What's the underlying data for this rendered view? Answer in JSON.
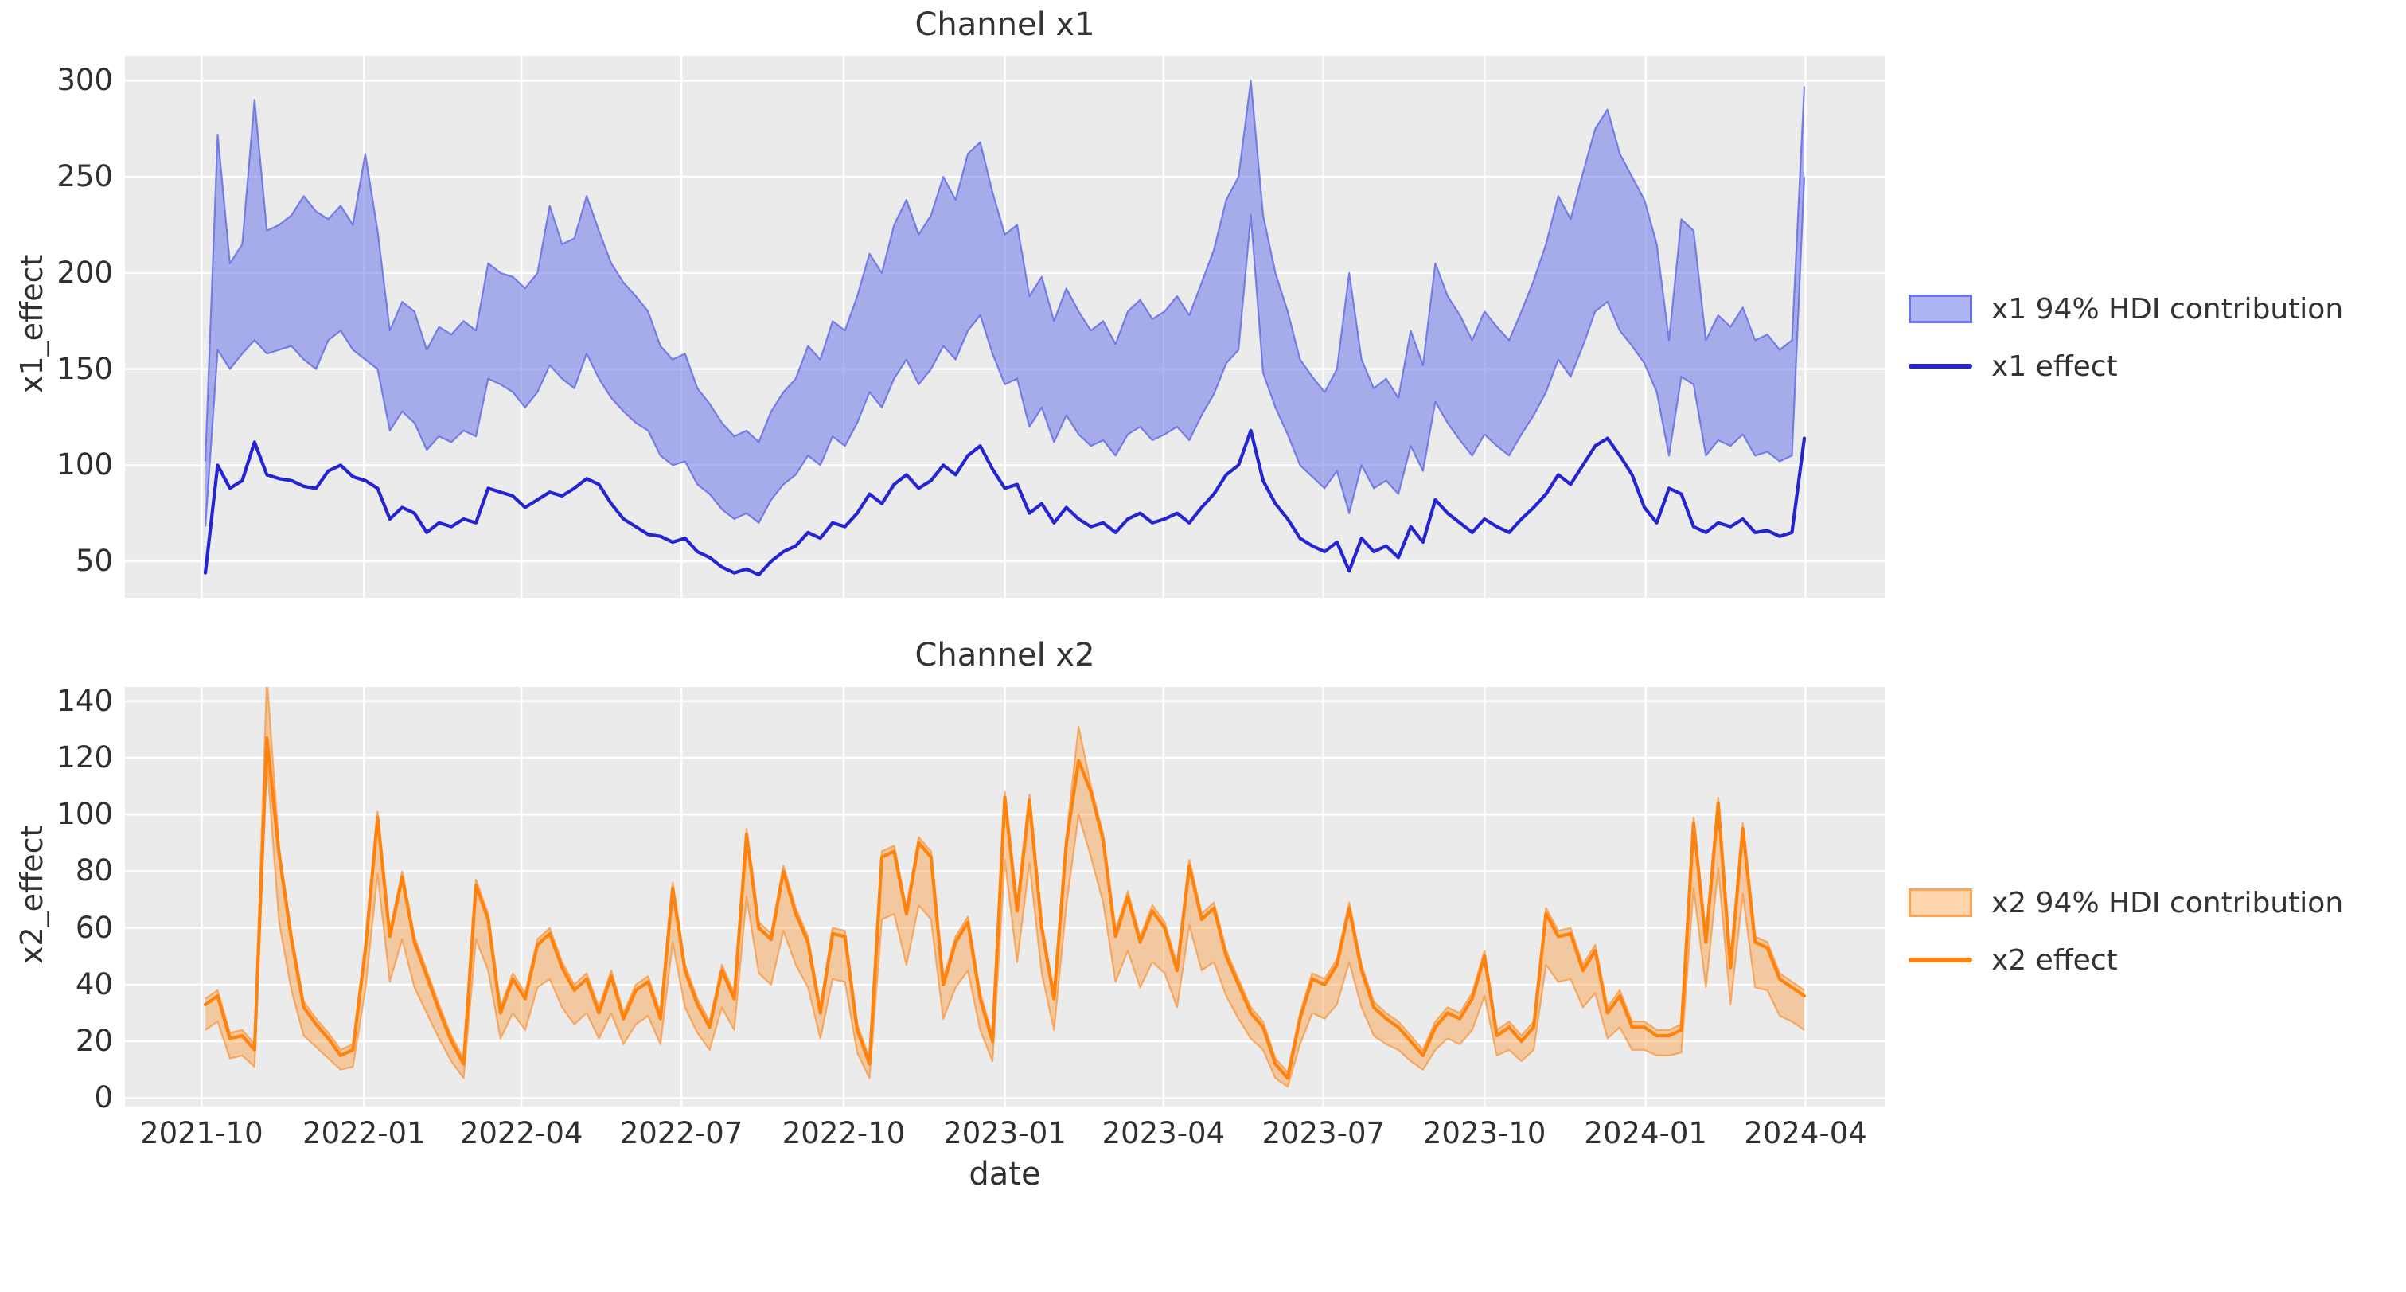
{
  "figure": {
    "background": "#ffffff",
    "plot_background": "#ebebeb",
    "gridline_color": "#ffffff"
  },
  "x_axis": {
    "label": "date",
    "ticks": [
      {
        "label": "2021-10",
        "week": -0.3
      },
      {
        "label": "2022-01",
        "week": 12.9
      },
      {
        "label": "2022-04",
        "week": 25.7
      },
      {
        "label": "2022-07",
        "week": 38.7
      },
      {
        "label": "2022-10",
        "week": 51.9
      },
      {
        "label": "2023-01",
        "week": 65.0
      },
      {
        "label": "2023-04",
        "week": 77.9
      },
      {
        "label": "2023-07",
        "week": 90.9
      },
      {
        "label": "2023-10",
        "week": 104.0
      },
      {
        "label": "2024-01",
        "week": 117.1
      },
      {
        "label": "2024-04",
        "week": 130.1
      }
    ]
  },
  "chart_data": [
    {
      "type": "area",
      "title": "Channel x1",
      "ylabel": "x1_effect",
      "xlabel": "",
      "legend": [
        "x1 94% HDI contribution",
        "x1 effect"
      ],
      "legend_position": "right-outside",
      "grid": true,
      "x_start": "2021-10-03",
      "x_step_days": 7,
      "n_points": 131,
      "ylim": [
        31,
        313
      ],
      "yticks": [
        50,
        100,
        150,
        200,
        250,
        300
      ],
      "line_color": "#2424d3",
      "band_fill": "rgba(110,118,232,0.55)",
      "band_edge": "rgba(96,105,228,0.8)",
      "effect": [
        44,
        100,
        88,
        92,
        112,
        95,
        93,
        92,
        89,
        88,
        97,
        100,
        94,
        92,
        88,
        72,
        78,
        75,
        65,
        70,
        68,
        72,
        70,
        88,
        86,
        84,
        78,
        82,
        86,
        84,
        88,
        93,
        90,
        80,
        72,
        68,
        64,
        63,
        60,
        62,
        55,
        52,
        47,
        44,
        46,
        43,
        50,
        55,
        58,
        65,
        62,
        70,
        68,
        75,
        85,
        80,
        90,
        95,
        88,
        92,
        100,
        95,
        105,
        110,
        98,
        88,
        90,
        75,
        80,
        70,
        78,
        72,
        68,
        70,
        65,
        72,
        75,
        70,
        72,
        75,
        70,
        78,
        85,
        95,
        100,
        118,
        92,
        80,
        72,
        62,
        58,
        55,
        60,
        45,
        62,
        55,
        58,
        52,
        68,
        60,
        82,
        75,
        70,
        65,
        72,
        68,
        65,
        72,
        78,
        85,
        95,
        90,
        100,
        110,
        114,
        105,
        95,
        78,
        70,
        88,
        85,
        68,
        65,
        70,
        68,
        72,
        65,
        66,
        63,
        65,
        114
      ],
      "hdi_lower": [
        68,
        160,
        150,
        158,
        165,
        158,
        160,
        162,
        155,
        150,
        165,
        170,
        160,
        155,
        150,
        118,
        128,
        122,
        108,
        115,
        112,
        118,
        115,
        145,
        142,
        138,
        130,
        138,
        152,
        145,
        140,
        158,
        145,
        135,
        128,
        122,
        118,
        105,
        100,
        102,
        90,
        85,
        77,
        72,
        75,
        70,
        82,
        90,
        95,
        105,
        100,
        115,
        110,
        122,
        138,
        130,
        145,
        155,
        142,
        150,
        162,
        155,
        170,
        178,
        158,
        142,
        145,
        120,
        130,
        112,
        126,
        116,
        110,
        113,
        105,
        116,
        120,
        113,
        116,
        120,
        113,
        126,
        137,
        153,
        160,
        230,
        148,
        130,
        116,
        100,
        94,
        88,
        97,
        75,
        100,
        88,
        92,
        85,
        110,
        97,
        133,
        122,
        113,
        105,
        116,
        110,
        105,
        116,
        126,
        138,
        155,
        146,
        162,
        180,
        185,
        170,
        162,
        153,
        138,
        105,
        146,
        142,
        105,
        113,
        110,
        116,
        105,
        107,
        102,
        105,
        250
      ],
      "hdi_upper": [
        102,
        272,
        205,
        215,
        290,
        222,
        225,
        230,
        240,
        232,
        228,
        235,
        225,
        262,
        222,
        170,
        185,
        180,
        160,
        172,
        168,
        175,
        170,
        205,
        200,
        198,
        192,
        200,
        235,
        215,
        218,
        240,
        222,
        205,
        195,
        188,
        180,
        162,
        155,
        158,
        140,
        132,
        122,
        115,
        118,
        112,
        128,
        138,
        145,
        162,
        155,
        175,
        170,
        188,
        210,
        200,
        225,
        238,
        220,
        230,
        250,
        238,
        262,
        268,
        242,
        220,
        225,
        188,
        198,
        175,
        192,
        180,
        170,
        175,
        163,
        180,
        186,
        176,
        180,
        188,
        178,
        195,
        212,
        238,
        250,
        300,
        230,
        200,
        180,
        155,
        146,
        138,
        150,
        200,
        155,
        140,
        145,
        135,
        170,
        152,
        205,
        188,
        178,
        165,
        180,
        172,
        165,
        180,
        196,
        215,
        240,
        228,
        252,
        275,
        285,
        262,
        250,
        238,
        215,
        165,
        228,
        222,
        165,
        178,
        172,
        182,
        165,
        168,
        160,
        165,
        297
      ]
    },
    {
      "type": "area",
      "title": "Channel x2",
      "ylabel": "x2_effect",
      "xlabel": "date",
      "legend": [
        "x2 94% HDI contribution",
        "x2 effect"
      ],
      "legend_position": "right-outside",
      "grid": true,
      "x_start": "2021-10-03",
      "x_step_days": 7,
      "n_points": 131,
      "ylim": [
        -3,
        145
      ],
      "yticks": [
        0,
        20,
        40,
        60,
        80,
        100,
        120,
        140
      ],
      "line_color": "#ff820d",
      "band_fill": "rgba(253,134,20,0.35)",
      "band_edge": "rgba(250,150,60,0.75)",
      "effect": [
        33,
        36,
        21,
        22,
        17,
        127,
        86,
        56,
        32,
        26,
        21,
        15,
        17,
        52,
        99,
        57,
        78,
        55,
        43,
        31,
        20,
        12,
        75,
        63,
        30,
        42,
        35,
        54,
        58,
        46,
        38,
        42,
        30,
        43,
        28,
        38,
        41,
        28,
        74,
        45,
        33,
        25,
        45,
        35,
        93,
        60,
        56,
        80,
        65,
        55,
        30,
        58,
        57,
        24,
        12,
        85,
        87,
        65,
        90,
        85,
        40,
        55,
        62,
        35,
        20,
        106,
        66,
        105,
        60,
        35,
        90,
        119,
        108,
        91,
        57,
        71,
        55,
        66,
        60,
        45,
        82,
        63,
        67,
        50,
        40,
        30,
        25,
        12,
        7,
        28,
        42,
        40,
        47,
        67,
        45,
        32,
        28,
        25,
        20,
        15,
        25,
        30,
        28,
        35,
        50,
        22,
        25,
        20,
        25,
        65,
        57,
        58,
        45,
        52,
        30,
        36,
        25,
        25,
        22,
        22,
        24,
        97,
        55,
        104,
        46,
        95,
        55,
        53,
        42,
        39,
        36
      ],
      "hdi_lower": [
        24,
        27,
        14,
        15,
        11,
        119,
        62,
        38,
        22,
        18,
        14,
        10,
        11,
        38,
        79,
        41,
        56,
        39,
        30,
        21,
        13,
        7,
        56,
        45,
        21,
        30,
        24,
        39,
        42,
        32,
        26,
        30,
        21,
        30,
        19,
        26,
        29,
        19,
        55,
        32,
        23,
        17,
        32,
        24,
        71,
        44,
        40,
        59,
        47,
        39,
        21,
        42,
        41,
        16,
        7,
        63,
        65,
        47,
        68,
        63,
        28,
        39,
        45,
        24,
        13,
        84,
        48,
        83,
        44,
        24,
        68,
        100,
        85,
        69,
        41,
        52,
        39,
        48,
        44,
        32,
        61,
        45,
        48,
        36,
        28,
        21,
        17,
        7,
        4,
        19,
        30,
        28,
        33,
        48,
        32,
        22,
        19,
        17,
        13,
        10,
        17,
        21,
        19,
        24,
        36,
        15,
        17,
        13,
        17,
        47,
        41,
        42,
        32,
        37,
        21,
        25,
        17,
        17,
        15,
        15,
        16,
        74,
        39,
        81,
        33,
        72,
        39,
        38,
        29,
        27,
        24
      ],
      "hdi_upper": [
        35,
        38,
        23,
        24,
        19,
        148,
        88,
        58,
        34,
        28,
        23,
        17,
        19,
        54,
        101,
        59,
        80,
        57,
        45,
        33,
        22,
        14,
        77,
        65,
        32,
        44,
        37,
        56,
        60,
        48,
        40,
        44,
        32,
        45,
        30,
        40,
        43,
        30,
        76,
        47,
        35,
        27,
        47,
        37,
        95,
        62,
        58,
        82,
        67,
        57,
        32,
        60,
        59,
        26,
        14,
        87,
        89,
        67,
        92,
        87,
        42,
        57,
        64,
        37,
        22,
        108,
        68,
        107,
        62,
        37,
        92,
        131,
        110,
        93,
        59,
        73,
        57,
        68,
        62,
        47,
        84,
        65,
        69,
        52,
        42,
        32,
        27,
        14,
        9,
        30,
        44,
        42,
        49,
        69,
        47,
        34,
        30,
        27,
        22,
        17,
        27,
        32,
        30,
        37,
        52,
        24,
        27,
        22,
        27,
        67,
        59,
        60,
        47,
        54,
        32,
        38,
        27,
        27,
        24,
        24,
        26,
        99,
        57,
        106,
        48,
        97,
        57,
        55,
        44,
        41,
        38
      ]
    }
  ]
}
